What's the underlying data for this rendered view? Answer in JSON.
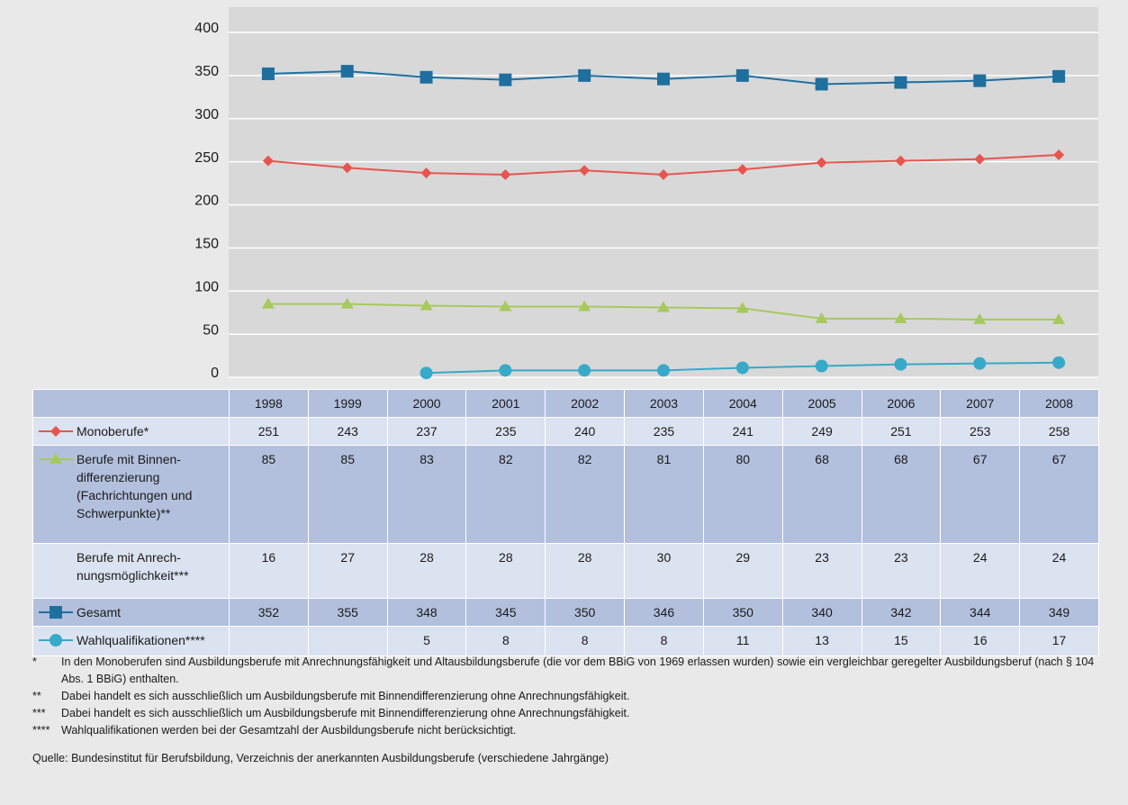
{
  "chart_data": {
    "type": "line",
    "categories": [
      "1998",
      "1999",
      "2000",
      "2001",
      "2002",
      "2003",
      "2004",
      "2005",
      "2006",
      "2007",
      "2008"
    ],
    "ylim": [
      0,
      400
    ],
    "yticks": [
      0,
      50,
      100,
      150,
      200,
      250,
      300,
      350,
      400
    ],
    "grid": true,
    "series": [
      {
        "name": "Monoberufe*",
        "color": "#e8554e",
        "marker": "diamond",
        "values": [
          251,
          243,
          237,
          235,
          240,
          235,
          241,
          249,
          251,
          253,
          258
        ]
      },
      {
        "name": "Berufe mit Binnen­differenzierung (Fachrichtungen und Schwerpunkte)**",
        "color": "#a6c95c",
        "marker": "triangle",
        "values": [
          85,
          85,
          83,
          82,
          82,
          81,
          80,
          68,
          68,
          67,
          67
        ]
      },
      {
        "name": "Berufe mit Anrech­nungsmöglichkeit***",
        "values": [
          16,
          27,
          28,
          28,
          28,
          30,
          29,
          23,
          23,
          24,
          24
        ]
      },
      {
        "name": "Gesamt",
        "color": "#1e6f9e",
        "marker": "square",
        "values": [
          352,
          355,
          348,
          345,
          350,
          346,
          350,
          340,
          342,
          344,
          349
        ]
      },
      {
        "name": "Wahlqualifikationen****",
        "color": "#37a9c9",
        "marker": "circle",
        "values": [
          null,
          null,
          5,
          8,
          8,
          8,
          11,
          13,
          15,
          16,
          17
        ]
      }
    ]
  },
  "footnotes": [
    {
      "mark": "*",
      "text": "In den Monoberufen sind Ausbildungsberufe mit Anrechnungsfähigkeit und Altausbildungsberufe (die vor dem BBiG von 1969 erlassen wurden) sowie ein vergleichbar geregelter Ausbildungsberuf (nach § 104 Abs. 1 BBiG)  enthalten."
    },
    {
      "mark": "**",
      "text": "Dabei handelt es sich ausschließlich um Ausbildungsberufe mit Binnendifferenzierung ohne Anrechnungsfähigkeit."
    },
    {
      "mark": "***",
      "text": "Dabei handelt es sich ausschließlich um Ausbildungsberufe mit Binnendifferenzierung ohne Anrechnungsfähigkeit."
    },
    {
      "mark": "****",
      "text": "Wahlqualifikationen werden bei der Gesamtzahl der Ausbildungsberufe nicht berücksichtigt."
    }
  ],
  "source": "Quelle: Bundesinstitut für Berufsbildung, Verzeichnis der anerkannten Ausbildungsberufe (verschiedene Jahrgänge)"
}
